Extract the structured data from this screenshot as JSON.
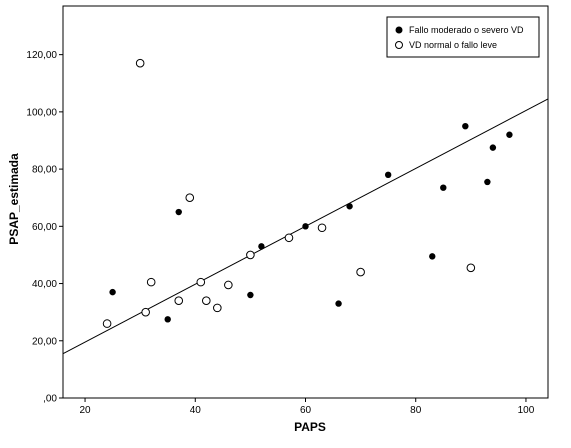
{
  "chart_data": {
    "type": "scatter",
    "xlabel": "PAPS",
    "ylabel": "PSAP_estimada",
    "xlim": [
      16,
      104
    ],
    "ylim": [
      0,
      137
    ],
    "x_ticks": [
      20,
      40,
      60,
      80,
      100
    ],
    "x_tick_labels": [
      "20",
      "40",
      "60",
      "80",
      "100"
    ],
    "y_ticks": [
      0,
      20,
      40,
      60,
      80,
      100,
      120
    ],
    "y_tick_labels": [
      ",00",
      "20,00",
      "40,00",
      "60,00",
      "80,00",
      "100,00",
      "120,00"
    ],
    "grid": false,
    "legend_position": "top-right",
    "series": [
      {
        "name": "Fallo moderado o severo VD",
        "marker": "filled-circle",
        "color": "#000000",
        "points": [
          [
            25,
            37
          ],
          [
            35,
            27.5
          ],
          [
            37,
            65
          ],
          [
            50,
            36
          ],
          [
            52,
            53
          ],
          [
            60,
            60
          ],
          [
            66,
            33
          ],
          [
            68,
            67
          ],
          [
            75,
            78
          ],
          [
            83,
            49.5
          ],
          [
            85,
            73.5
          ],
          [
            89,
            95
          ],
          [
            93,
            75.5
          ],
          [
            94,
            87.5
          ],
          [
            97,
            92
          ]
        ]
      },
      {
        "name": "VD normal o fallo leve",
        "marker": "open-circle",
        "color": "#000000",
        "points": [
          [
            24,
            26
          ],
          [
            30,
            117
          ],
          [
            31,
            30
          ],
          [
            32,
            40.5
          ],
          [
            37,
            34
          ],
          [
            39,
            70
          ],
          [
            41,
            40.5
          ],
          [
            42,
            34
          ],
          [
            44,
            31.5
          ],
          [
            46,
            39.5
          ],
          [
            50,
            50
          ],
          [
            57,
            56
          ],
          [
            63,
            59.5
          ],
          [
            70,
            44
          ],
          [
            90,
            45.5
          ]
        ]
      }
    ],
    "fit_line": {
      "x": [
        16,
        104
      ],
      "y": [
        15.5,
        104.5
      ]
    }
  }
}
